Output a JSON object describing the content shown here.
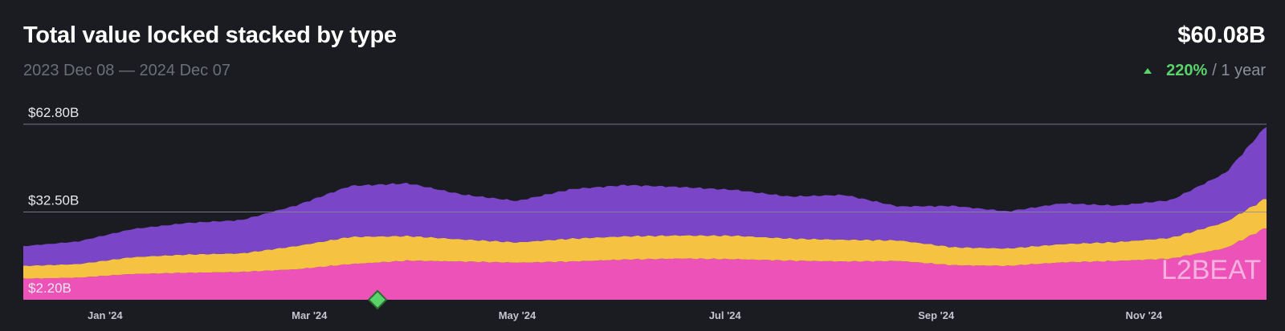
{
  "header": {
    "title": "Total value locked stacked by type",
    "date_range": "2023 Dec 08 — 2024 Dec 07",
    "total_value": "$60.08B",
    "change_percent": "220%",
    "change_period": "/ 1 year"
  },
  "watermark": "L2BEAT",
  "colors": {
    "background": "#1b1c21",
    "canonical": "#7b45c8",
    "external": "#f5c242",
    "native": "#ec52b8",
    "marker": "#5ad46a",
    "positive": "#5ad46a"
  },
  "chart_data": {
    "type": "area",
    "stacked": true,
    "x_start": "2023-12-08",
    "x_end": "2024-12-07",
    "x_tick_labels": [
      "Jan '24",
      "Mar '24",
      "May '24",
      "Jul '24",
      "Sep '24",
      "Nov '24"
    ],
    "x_tick_dates": [
      "2024-01-01",
      "2024-03-01",
      "2024-05-01",
      "2024-07-01",
      "2024-09-01",
      "2024-11-01"
    ],
    "y_tick_labels": [
      "$62.80B",
      "$32.50B",
      "$2.20B"
    ],
    "y_tick_values": [
      62.8,
      32.5,
      2.2
    ],
    "ylim": [
      2.2,
      62.8
    ],
    "grid": true,
    "dates": [
      "2023-12-08",
      "2023-12-24",
      "2024-01-09",
      "2024-01-25",
      "2024-02-10",
      "2024-02-26",
      "2024-03-13",
      "2024-03-30",
      "2024-04-15",
      "2024-05-01",
      "2024-05-17",
      "2024-06-02",
      "2024-06-18",
      "2024-07-04",
      "2024-07-20",
      "2024-08-05",
      "2024-08-21",
      "2024-09-06",
      "2024-09-22",
      "2024-10-08",
      "2024-10-24",
      "2024-11-09",
      "2024-11-25",
      "2024-12-07"
    ],
    "series": [
      {
        "key": "native",
        "values": [
          7.3,
          7.6,
          8.9,
          9.3,
          9.6,
          10.5,
          12.3,
          13.5,
          13.2,
          12.8,
          13.2,
          13.9,
          14.2,
          14.0,
          13.5,
          13.2,
          13.4,
          11.9,
          11.7,
          12.9,
          13.4,
          14.2,
          17.8,
          24.9
        ]
      },
      {
        "key": "external",
        "values": [
          4.4,
          4.7,
          5.8,
          6.3,
          6.4,
          8.0,
          9.4,
          8.5,
          7.6,
          7.0,
          7.9,
          8.0,
          8.0,
          8.1,
          7.6,
          7.5,
          7.1,
          6.2,
          6.0,
          6.3,
          6.5,
          7.2,
          9.0,
          10.2
        ]
      },
      {
        "key": "canonical",
        "values": [
          6.8,
          7.8,
          9.7,
          10.9,
          11.5,
          14.0,
          17.6,
          18.2,
          15.5,
          14.3,
          17.1,
          17.7,
          16.7,
          15.8,
          14.5,
          15.5,
          11.7,
          14.3,
          12.8,
          14.1,
          12.6,
          13.0,
          17.0,
          25.0
        ]
      }
    ],
    "marker_date": "2024-03-21"
  }
}
